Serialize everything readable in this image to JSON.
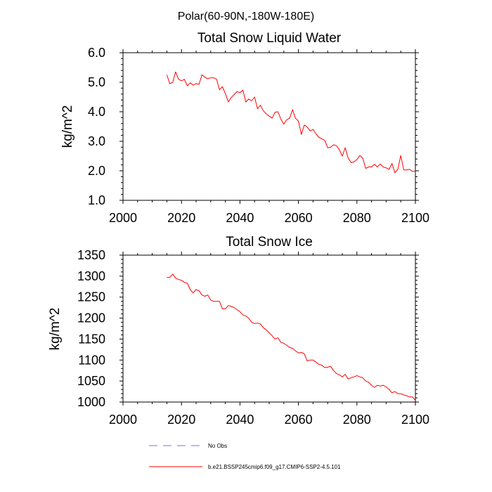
{
  "figure": {
    "suptitle": "Polar(60-90N,-180W-180E)"
  },
  "chart_data": [
    {
      "type": "line",
      "title": "Total Snow Liquid Water",
      "xlabel": "",
      "ylabel": "kg/m^2",
      "xlim": [
        2000,
        2100
      ],
      "ylim": [
        1.0,
        6.0
      ],
      "xticks": [
        2000,
        2020,
        2040,
        2060,
        2080,
        2100
      ],
      "xtick_labels": [
        "2000",
        "2020",
        "2040",
        "2060",
        "2080",
        "2100"
      ],
      "yticks": [
        1.0,
        2.0,
        3.0,
        4.0,
        5.0,
        6.0
      ],
      "ytick_labels": [
        "1.0",
        "2.0",
        "3.0",
        "4.0",
        "5.0",
        "6.0"
      ],
      "series": [
        {
          "name": "b.e21.BSSP245cmip6.f09_g17.CMIP6-SSP2-4.5.101",
          "color": "#ff0000",
          "x": [
            2015,
            2016,
            2017,
            2018,
            2019,
            2020,
            2021,
            2022,
            2023,
            2024,
            2025,
            2026,
            2027,
            2028,
            2029,
            2030,
            2031,
            2032,
            2033,
            2034,
            2035,
            2036,
            2037,
            2038,
            2039,
            2040,
            2041,
            2042,
            2043,
            2044,
            2045,
            2046,
            2047,
            2048,
            2049,
            2050,
            2051,
            2052,
            2053,
            2054,
            2055,
            2056,
            2057,
            2058,
            2059,
            2060,
            2061,
            2062,
            2063,
            2064,
            2065,
            2066,
            2067,
            2068,
            2069,
            2070,
            2071,
            2072,
            2073,
            2074,
            2075,
            2076,
            2077,
            2078,
            2079,
            2080,
            2081,
            2082,
            2083,
            2084,
            2085,
            2086,
            2087,
            2088,
            2089,
            2090,
            2091,
            2092,
            2093,
            2094,
            2095,
            2096,
            2097,
            2098,
            2099,
            2100
          ],
          "y": [
            5.25,
            4.95,
            5.0,
            5.35,
            5.1,
            5.05,
            5.1,
            4.88,
            4.98,
            4.9,
            4.95,
            4.93,
            5.25,
            5.17,
            5.12,
            5.15,
            5.15,
            5.1,
            4.75,
            4.85,
            4.62,
            4.33,
            4.48,
            4.58,
            4.68,
            4.65,
            4.73,
            4.33,
            4.43,
            4.37,
            4.5,
            4.1,
            4.22,
            4.03,
            3.93,
            3.85,
            3.78,
            3.98,
            4.0,
            3.75,
            3.58,
            3.73,
            3.78,
            4.07,
            3.78,
            3.68,
            3.23,
            3.55,
            3.48,
            3.35,
            3.4,
            3.25,
            3.13,
            3.08,
            3.03,
            2.78,
            2.8,
            2.88,
            2.85,
            2.72,
            2.5,
            2.78,
            2.43,
            2.28,
            2.3,
            2.38,
            2.52,
            2.43,
            2.08,
            2.13,
            2.13,
            2.22,
            2.13,
            2.23,
            2.13,
            2.1,
            2.05,
            2.25,
            1.93,
            2.05,
            2.52,
            2.03,
            2.03,
            2.05,
            1.98,
            1.98
          ]
        }
      ]
    },
    {
      "type": "line",
      "title": "Total Snow Ice",
      "xlabel": "",
      "ylabel": "kg/m^2",
      "xlim": [
        2000,
        2100
      ],
      "ylim": [
        1000,
        1350
      ],
      "xticks": [
        2000,
        2020,
        2040,
        2060,
        2080,
        2100
      ],
      "xtick_labels": [
        "2000",
        "2020",
        "2040",
        "2060",
        "2080",
        "2100"
      ],
      "yticks": [
        1000,
        1050,
        1100,
        1150,
        1200,
        1250,
        1300,
        1350
      ],
      "ytick_labels": [
        "1000",
        "1050",
        "1100",
        "1150",
        "1200",
        "1250",
        "1300",
        "1350"
      ],
      "series": [
        {
          "name": "b.e21.BSSP245cmip6.f09_g17.CMIP6-SSP2-4.5.101",
          "color": "#ff0000",
          "x": [
            2015,
            2016,
            2017,
            2018,
            2019,
            2020,
            2021,
            2022,
            2023,
            2024,
            2025,
            2026,
            2027,
            2028,
            2029,
            2030,
            2031,
            2032,
            2033,
            2034,
            2035,
            2036,
            2037,
            2038,
            2039,
            2040,
            2041,
            2042,
            2043,
            2044,
            2045,
            2046,
            2047,
            2048,
            2049,
            2050,
            2051,
            2052,
            2053,
            2054,
            2055,
            2056,
            2057,
            2058,
            2059,
            2060,
            2061,
            2062,
            2063,
            2064,
            2065,
            2066,
            2067,
            2068,
            2069,
            2070,
            2071,
            2072,
            2073,
            2074,
            2075,
            2076,
            2077,
            2078,
            2079,
            2080,
            2081,
            2082,
            2083,
            2084,
            2085,
            2086,
            2087,
            2088,
            2089,
            2090,
            2091,
            2092,
            2093,
            2094,
            2095,
            2096,
            2097,
            2098,
            2099,
            2100
          ],
          "y": [
            1297,
            1297,
            1305,
            1295,
            1292,
            1290,
            1285,
            1283,
            1268,
            1260,
            1268,
            1265,
            1255,
            1252,
            1255,
            1243,
            1240,
            1240,
            1240,
            1222,
            1222,
            1230,
            1228,
            1225,
            1220,
            1215,
            1208,
            1205,
            1200,
            1190,
            1187,
            1188,
            1186,
            1177,
            1172,
            1165,
            1158,
            1150,
            1153,
            1142,
            1140,
            1135,
            1130,
            1128,
            1122,
            1117,
            1118,
            1115,
            1098,
            1100,
            1100,
            1095,
            1090,
            1088,
            1082,
            1083,
            1085,
            1075,
            1068,
            1065,
            1060,
            1066,
            1055,
            1058,
            1060,
            1063,
            1060,
            1058,
            1050,
            1047,
            1040,
            1035,
            1040,
            1038,
            1040,
            1036,
            1030,
            1022,
            1025,
            1020,
            1020,
            1017,
            1015,
            1012,
            1012,
            1004
          ]
        }
      ]
    }
  ],
  "legend": {
    "placement": "bottom",
    "entries": [
      {
        "label": "No Obs",
        "color": "#7777cc",
        "style": "dashed"
      },
      {
        "label": "b.e21.BSSP245cmip6.f09_g17.CMIP6-SSP2-4.5.101",
        "color": "#ff0000",
        "style": "solid"
      }
    ]
  }
}
